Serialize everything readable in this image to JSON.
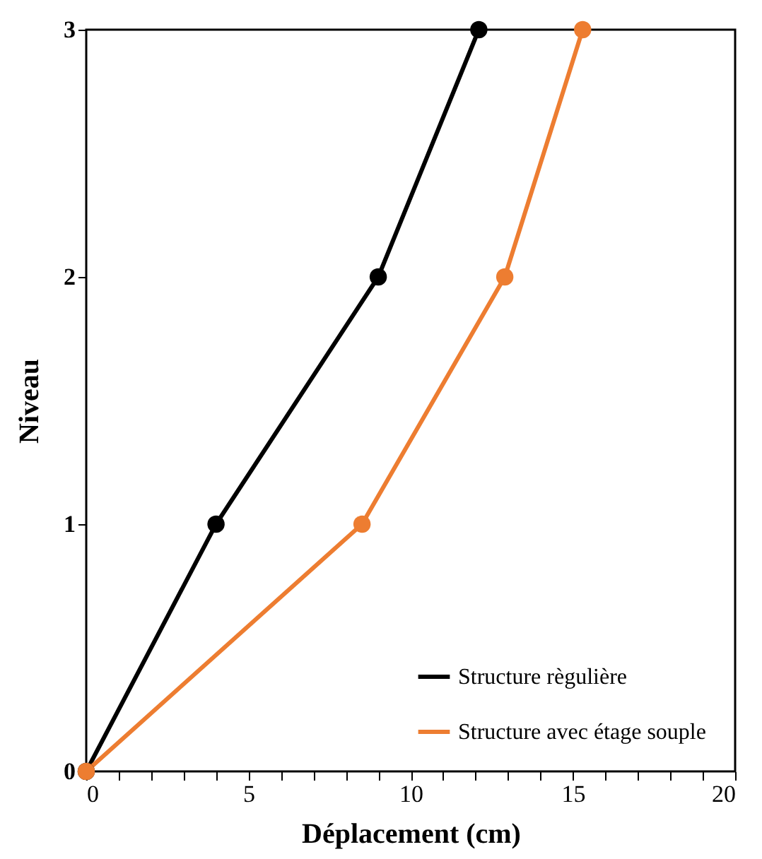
{
  "chart_data": {
    "type": "line",
    "xlabel": "Déplacement (cm)",
    "ylabel": "Niveau",
    "series": [
      {
        "name": "Structure règulière",
        "color": "#000000",
        "x": [
          0,
          4.0,
          9.0,
          12.1
        ],
        "values": [
          0,
          1,
          2,
          3
        ]
      },
      {
        "name": "Structure avec étage souple",
        "color": "#ed7d31",
        "x": [
          0,
          8.5,
          12.9,
          15.3
        ],
        "values": [
          0,
          1,
          2,
          3
        ]
      }
    ],
    "xlim": [
      0,
      20
    ],
    "xticks": [
      0,
      {
        "value": 1,
        "label": null
      },
      {
        "value": 2,
        "label": null
      },
      {
        "value": 3,
        "label": null
      },
      {
        "value": 4,
        "label": null
      },
      5,
      {
        "value": 6,
        "label": null
      },
      {
        "value": 7,
        "label": null
      },
      {
        "value": 8,
        "label": null
      },
      {
        "value": 9,
        "label": null
      },
      10,
      {
        "value": 11,
        "label": null
      },
      {
        "value": 12,
        "label": null
      },
      {
        "value": 13,
        "label": null
      },
      {
        "value": 14,
        "label": null
      },
      15,
      {
        "value": 16,
        "label": null
      },
      {
        "value": 17,
        "label": null
      },
      {
        "value": 18,
        "label": null
      },
      {
        "value": 19,
        "label": null
      },
      20
    ],
    "ylim": [
      0,
      3
    ],
    "yticks": [
      0,
      1,
      2,
      3
    ],
    "grid": false,
    "legend": "bottom right",
    "marker": "circle"
  }
}
